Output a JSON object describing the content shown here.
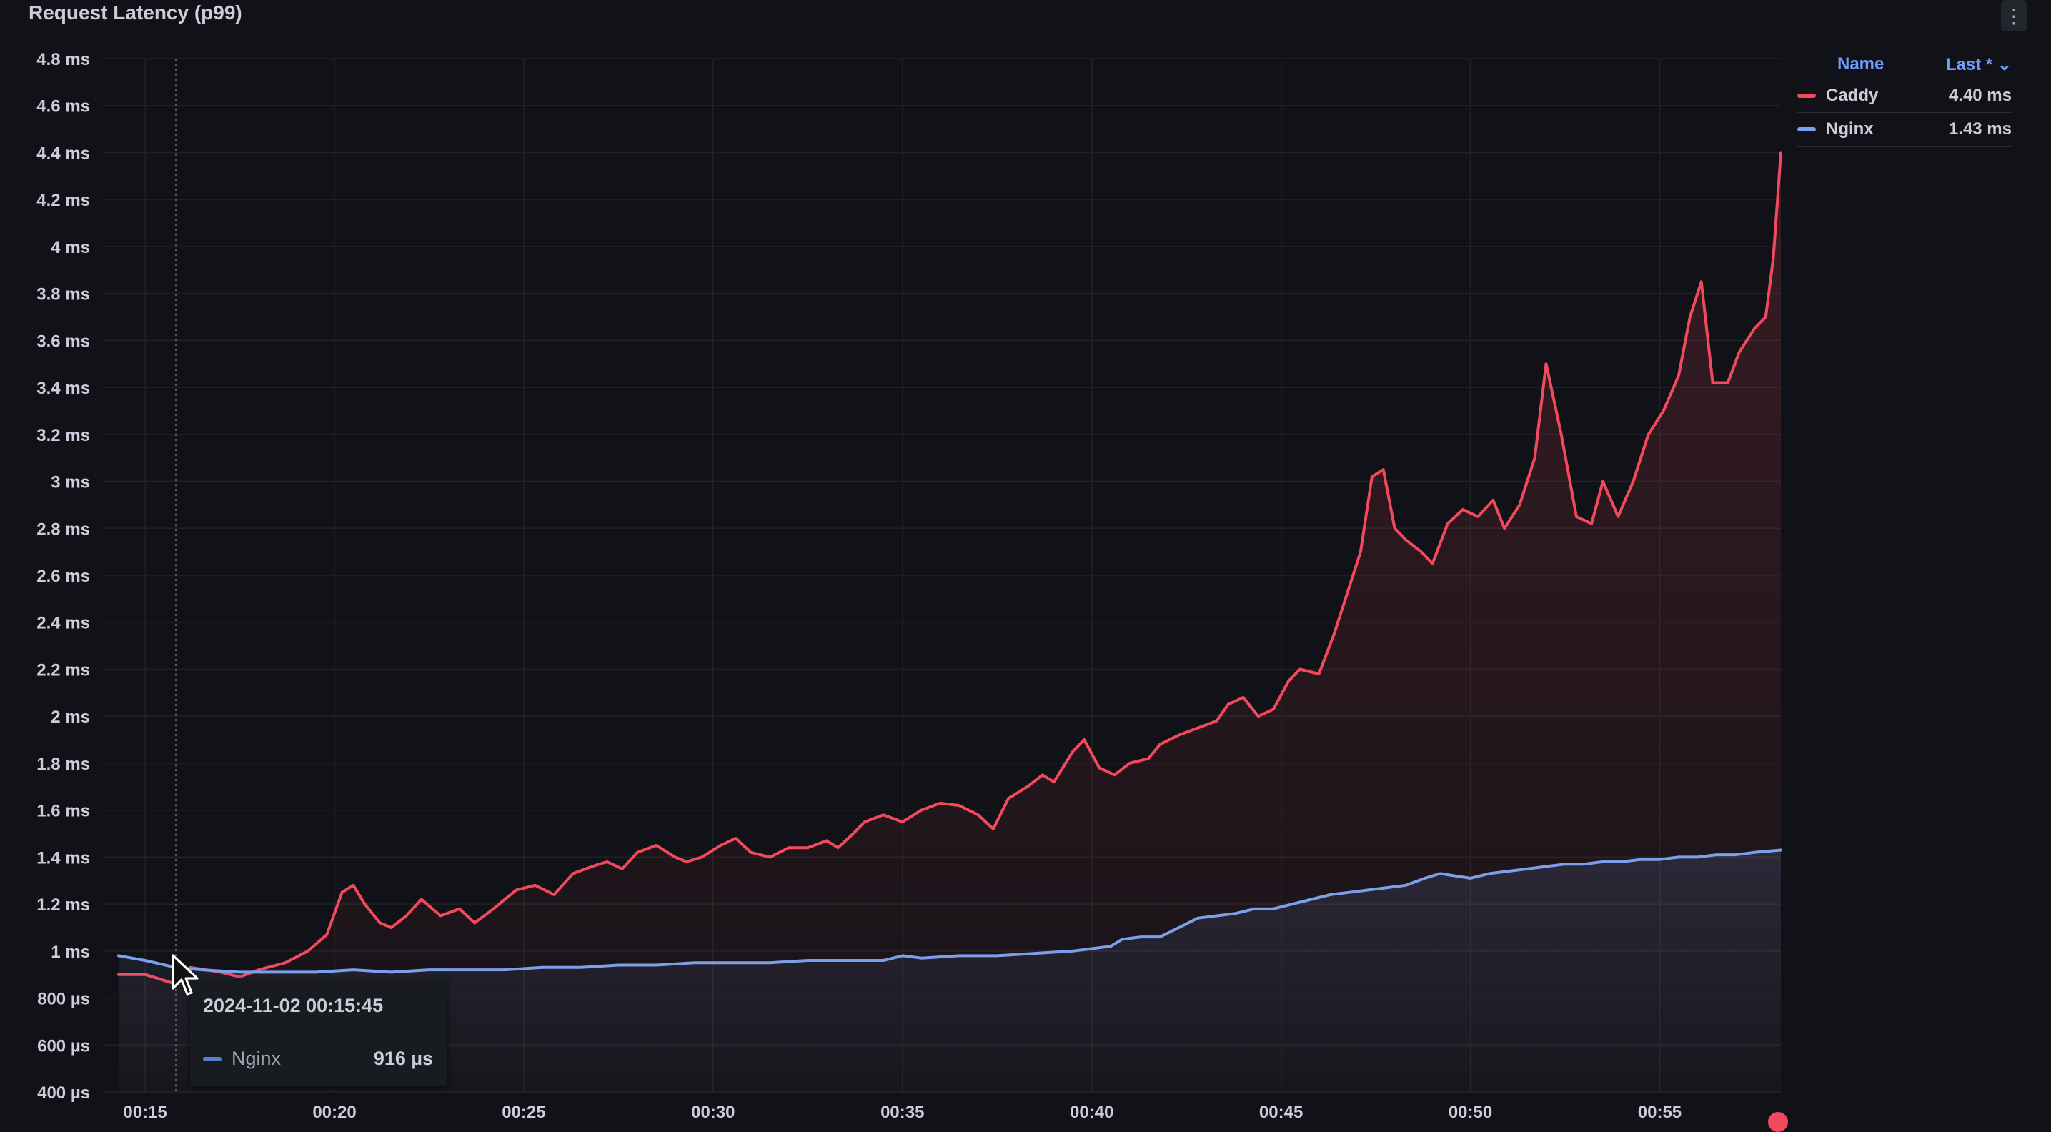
{
  "panel": {
    "title": "Request Latency (p99)",
    "menu_icon": "vertical-ellipsis-icon"
  },
  "legend": {
    "headers": {
      "name": "Name",
      "last": "Last * ⌄"
    },
    "rows": [
      {
        "name": "Caddy",
        "value": "4.40 ms",
        "color": "#f2495c"
      },
      {
        "name": "Nginx",
        "value": "1.43 ms",
        "color": "#7b9fe8"
      }
    ]
  },
  "tooltip": {
    "time": "2024-11-02 00:15:45",
    "series": "Nginx",
    "value": "916 µs",
    "color": "#5d7fcb"
  },
  "chart_data": {
    "type": "line",
    "title": "Request Latency (p99)",
    "xlabel": "",
    "ylabel": "",
    "x_ticks": [
      "00:15",
      "00:20",
      "00:25",
      "00:30",
      "00:35",
      "00:40",
      "00:45",
      "00:50",
      "00:55"
    ],
    "y_ticks": [
      "4.8 ms",
      "4.6 ms",
      "4.4 ms",
      "4.2 ms",
      "4 ms",
      "3.8 ms",
      "3.6 ms",
      "3.4 ms",
      "3.2 ms",
      "3 ms",
      "2.8 ms",
      "2.6 ms",
      "2.4 ms",
      "2.2 ms",
      "2 ms",
      "1.8 ms",
      "1.6 ms",
      "1.4 ms",
      "1.2 ms",
      "1 ms",
      "800 µs",
      "600 µs",
      "400 µs"
    ],
    "x_unit": "minutes after 00:00",
    "xlim": [
      14.3,
      58.2
    ],
    "ylim": [
      0.4,
      4.8
    ],
    "grid": true,
    "legend_position": "right",
    "series": [
      {
        "name": "Caddy",
        "color": "#f2495c",
        "points": [
          [
            14.3,
            0.9
          ],
          [
            15.0,
            0.9
          ],
          [
            15.8,
            0.86
          ],
          [
            16.2,
            0.93
          ],
          [
            17.0,
            0.91
          ],
          [
            17.5,
            0.89
          ],
          [
            18.0,
            0.92
          ],
          [
            18.7,
            0.95
          ],
          [
            19.3,
            1.0
          ],
          [
            19.8,
            1.07
          ],
          [
            20.2,
            1.25
          ],
          [
            20.5,
            1.28
          ],
          [
            20.8,
            1.2
          ],
          [
            21.2,
            1.12
          ],
          [
            21.5,
            1.1
          ],
          [
            21.9,
            1.15
          ],
          [
            22.3,
            1.22
          ],
          [
            22.8,
            1.15
          ],
          [
            23.3,
            1.18
          ],
          [
            23.7,
            1.12
          ],
          [
            24.2,
            1.18
          ],
          [
            24.8,
            1.26
          ],
          [
            25.3,
            1.28
          ],
          [
            25.8,
            1.24
          ],
          [
            26.3,
            1.33
          ],
          [
            26.8,
            1.36
          ],
          [
            27.2,
            1.38
          ],
          [
            27.6,
            1.35
          ],
          [
            28.0,
            1.42
          ],
          [
            28.5,
            1.45
          ],
          [
            29.0,
            1.4
          ],
          [
            29.3,
            1.38
          ],
          [
            29.7,
            1.4
          ],
          [
            30.2,
            1.45
          ],
          [
            30.6,
            1.48
          ],
          [
            31.0,
            1.42
          ],
          [
            31.5,
            1.4
          ],
          [
            32.0,
            1.44
          ],
          [
            32.5,
            1.44
          ],
          [
            33.0,
            1.47
          ],
          [
            33.3,
            1.44
          ],
          [
            33.7,
            1.5
          ],
          [
            34.0,
            1.55
          ],
          [
            34.5,
            1.58
          ],
          [
            35.0,
            1.55
          ],
          [
            35.5,
            1.6
          ],
          [
            36.0,
            1.63
          ],
          [
            36.5,
            1.62
          ],
          [
            37.0,
            1.58
          ],
          [
            37.4,
            1.52
          ],
          [
            37.8,
            1.65
          ],
          [
            38.3,
            1.7
          ],
          [
            38.7,
            1.75
          ],
          [
            39.0,
            1.72
          ],
          [
            39.5,
            1.85
          ],
          [
            39.8,
            1.9
          ],
          [
            40.2,
            1.78
          ],
          [
            40.6,
            1.75
          ],
          [
            41.0,
            1.8
          ],
          [
            41.5,
            1.82
          ],
          [
            41.8,
            1.88
          ],
          [
            42.3,
            1.92
          ],
          [
            42.8,
            1.95
          ],
          [
            43.3,
            1.98
          ],
          [
            43.6,
            2.05
          ],
          [
            44.0,
            2.08
          ],
          [
            44.4,
            2.0
          ],
          [
            44.8,
            2.03
          ],
          [
            45.2,
            2.15
          ],
          [
            45.5,
            2.2
          ],
          [
            46.0,
            2.18
          ],
          [
            46.4,
            2.35
          ],
          [
            46.8,
            2.55
          ],
          [
            47.1,
            2.7
          ],
          [
            47.4,
            3.02
          ],
          [
            47.7,
            3.05
          ],
          [
            48.0,
            2.8
          ],
          [
            48.3,
            2.75
          ],
          [
            48.7,
            2.7
          ],
          [
            49.0,
            2.65
          ],
          [
            49.4,
            2.82
          ],
          [
            49.8,
            2.88
          ],
          [
            50.2,
            2.85
          ],
          [
            50.6,
            2.92
          ],
          [
            50.9,
            2.8
          ],
          [
            51.3,
            2.9
          ],
          [
            51.7,
            3.1
          ],
          [
            52.0,
            3.5
          ],
          [
            52.4,
            3.2
          ],
          [
            52.8,
            2.85
          ],
          [
            53.2,
            2.82
          ],
          [
            53.5,
            3.0
          ],
          [
            53.9,
            2.85
          ],
          [
            54.3,
            3.0
          ],
          [
            54.7,
            3.2
          ],
          [
            55.1,
            3.3
          ],
          [
            55.5,
            3.45
          ],
          [
            55.8,
            3.7
          ],
          [
            56.1,
            3.85
          ],
          [
            56.4,
            3.42
          ],
          [
            56.8,
            3.42
          ],
          [
            57.1,
            3.55
          ],
          [
            57.5,
            3.65
          ],
          [
            57.8,
            3.7
          ],
          [
            58.0,
            3.95
          ],
          [
            58.2,
            4.4
          ]
        ]
      },
      {
        "name": "Nginx",
        "color": "#7b9fe8",
        "points": [
          [
            14.3,
            0.98
          ],
          [
            15.0,
            0.96
          ],
          [
            15.8,
            0.93
          ],
          [
            16.5,
            0.92
          ],
          [
            17.5,
            0.91
          ],
          [
            18.5,
            0.91
          ],
          [
            19.5,
            0.91
          ],
          [
            20.5,
            0.92
          ],
          [
            21.5,
            0.91
          ],
          [
            22.5,
            0.92
          ],
          [
            23.5,
            0.92
          ],
          [
            24.5,
            0.92
          ],
          [
            25.5,
            0.93
          ],
          [
            26.5,
            0.93
          ],
          [
            27.5,
            0.94
          ],
          [
            28.5,
            0.94
          ],
          [
            29.5,
            0.95
          ],
          [
            30.5,
            0.95
          ],
          [
            31.5,
            0.95
          ],
          [
            32.5,
            0.96
          ],
          [
            33.5,
            0.96
          ],
          [
            34.5,
            0.96
          ],
          [
            35.0,
            0.98
          ],
          [
            35.5,
            0.97
          ],
          [
            36.5,
            0.98
          ],
          [
            37.5,
            0.98
          ],
          [
            38.5,
            0.99
          ],
          [
            39.5,
            1.0
          ],
          [
            40.0,
            1.01
          ],
          [
            40.5,
            1.02
          ],
          [
            40.8,
            1.05
          ],
          [
            41.3,
            1.06
          ],
          [
            41.8,
            1.06
          ],
          [
            42.3,
            1.1
          ],
          [
            42.8,
            1.14
          ],
          [
            43.3,
            1.15
          ],
          [
            43.8,
            1.16
          ],
          [
            44.3,
            1.18
          ],
          [
            44.8,
            1.18
          ],
          [
            45.3,
            1.2
          ],
          [
            45.8,
            1.22
          ],
          [
            46.3,
            1.24
          ],
          [
            46.8,
            1.25
          ],
          [
            47.3,
            1.26
          ],
          [
            47.8,
            1.27
          ],
          [
            48.3,
            1.28
          ],
          [
            48.8,
            1.31
          ],
          [
            49.2,
            1.33
          ],
          [
            49.6,
            1.32
          ],
          [
            50.0,
            1.31
          ],
          [
            50.5,
            1.33
          ],
          [
            51.0,
            1.34
          ],
          [
            51.5,
            1.35
          ],
          [
            52.0,
            1.36
          ],
          [
            52.5,
            1.37
          ],
          [
            53.0,
            1.37
          ],
          [
            53.5,
            1.38
          ],
          [
            54.0,
            1.38
          ],
          [
            54.5,
            1.39
          ],
          [
            55.0,
            1.39
          ],
          [
            55.5,
            1.4
          ],
          [
            56.0,
            1.4
          ],
          [
            56.5,
            1.41
          ],
          [
            57.0,
            1.41
          ],
          [
            57.5,
            1.42
          ],
          [
            58.2,
            1.43
          ]
        ]
      }
    ]
  }
}
